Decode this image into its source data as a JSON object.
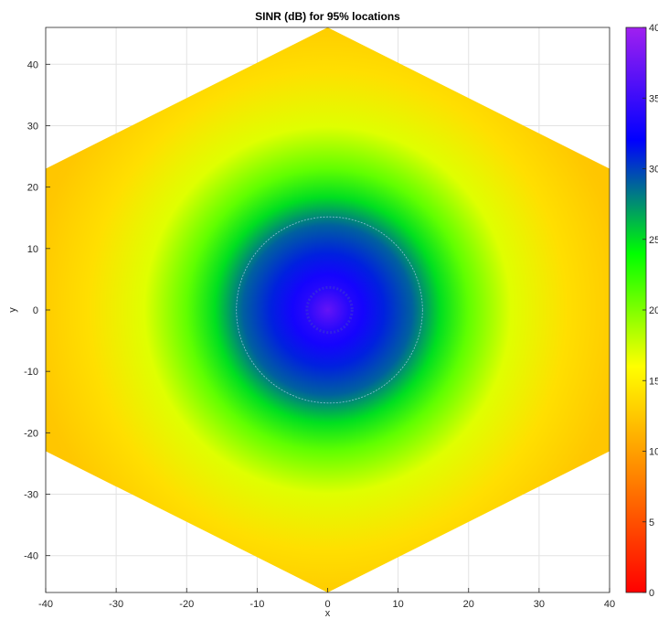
{
  "chart_data": {
    "type": "heatmap",
    "title": "SINR (dB) for 95% locations",
    "xlabel": "x",
    "ylabel": "y",
    "xlim": [
      -40,
      40
    ],
    "ylim": [
      -46,
      46
    ],
    "xticks": [
      -40,
      -30,
      -20,
      -10,
      0,
      10,
      20,
      30,
      40
    ],
    "yticks": [
      -40,
      -30,
      -20,
      -10,
      0,
      10,
      20,
      30,
      40
    ],
    "grid": true,
    "region": "hexagon",
    "hexagon_vertices": [
      [
        0,
        46
      ],
      [
        40,
        23
      ],
      [
        40,
        -23
      ],
      [
        0,
        -46
      ],
      [
        -40,
        -23
      ],
      [
        -40,
        23
      ]
    ],
    "colorbar": {
      "position": "right",
      "min": 0,
      "max": 40,
      "ticks": [
        0,
        5,
        10,
        15,
        20,
        25,
        30,
        35,
        40
      ],
      "colors": [
        "#ff0000",
        "#ff8000",
        "#ffff00",
        "#00ff00",
        "#0000ff",
        "#a020f0"
      ]
    },
    "radial_profile": [
      {
        "r": 0,
        "sinr": 37
      },
      {
        "r": 3,
        "sinr": 34
      },
      {
        "r": 5,
        "sinr": 33
      },
      {
        "r": 8,
        "sinr": 31
      },
      {
        "r": 12,
        "sinr": 29
      },
      {
        "r": 16,
        "sinr": 25
      },
      {
        "r": 20,
        "sinr": 21
      },
      {
        "r": 26,
        "sinr": 17
      },
      {
        "r": 34,
        "sinr": 14
      },
      {
        "r": 42,
        "sinr": 12.5
      },
      {
        "r": 52,
        "sinr": 12
      }
    ]
  }
}
